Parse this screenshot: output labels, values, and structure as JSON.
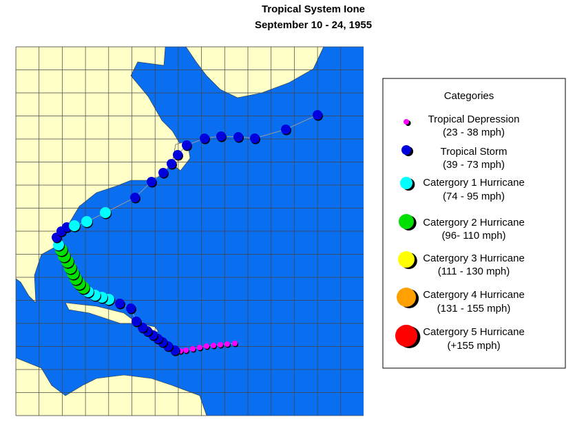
{
  "title": "Tropical System Ione",
  "subtitle": "September 10 -  24, 1955",
  "legend": {
    "title": "Categories",
    "items": [
      {
        "name": "Tropical Depression",
        "range": "(23 - 38 mph)",
        "color": "#ff00ff"
      },
      {
        "name": "Tropical Storm",
        "range": "(39 - 73 mph)",
        "color": "#0000dd"
      },
      {
        "name": "Catergory 1 Hurricane",
        "range": "(74 - 95 mph)",
        "color": "#00ffff"
      },
      {
        "name": "Catergory 2 Hurricane",
        "range": "(96- 110 mph)",
        "color": "#00e000"
      },
      {
        "name": "Catergory 3 Hurricane",
        "range": "(111 - 130 mph)",
        "color": "#ffff00"
      },
      {
        "name": "Catergory 4 Hurricane",
        "range": "(131 - 155 mph)",
        "color": "#ffa000"
      },
      {
        "name": "Catergory 5 Hurricane",
        "range": "(+155 mph)",
        "color": "#ff0000"
      }
    ]
  }
}
